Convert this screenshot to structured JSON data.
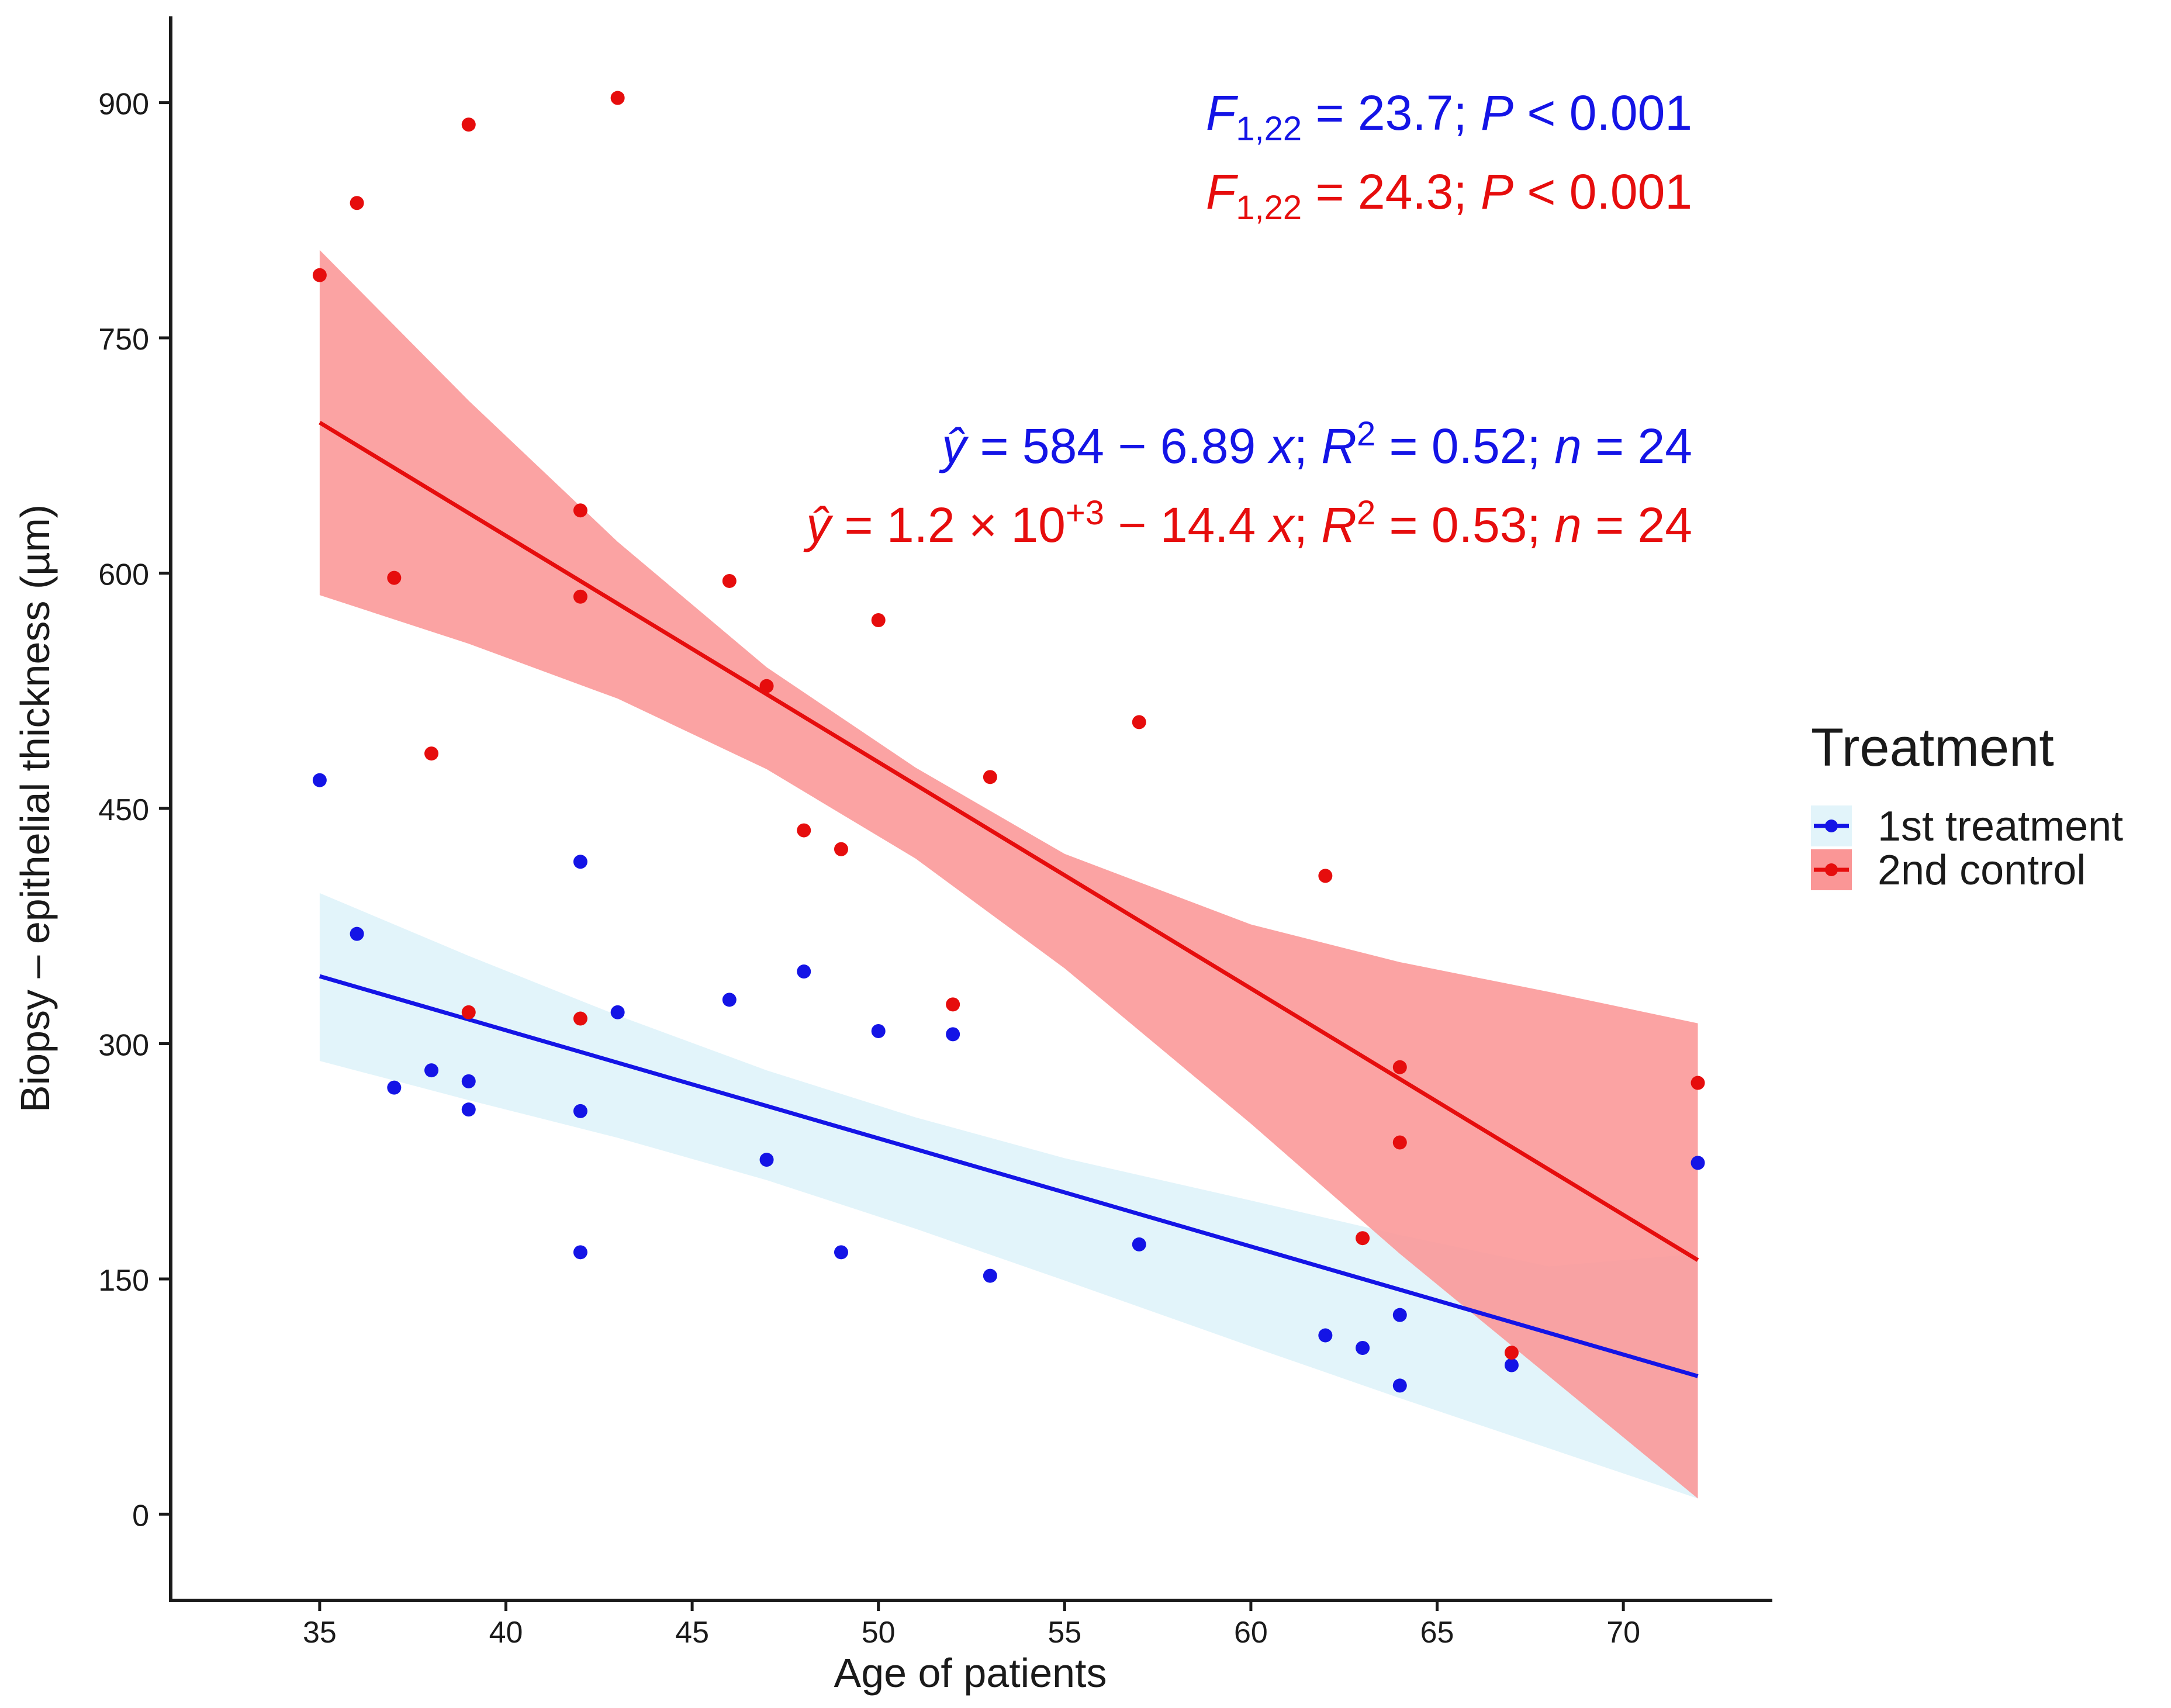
{
  "chart_data": {
    "type": "scatter",
    "xlabel": "Age of patients",
    "ylabel": "Biopsy – epithelial thickness (µm)",
    "xlim": [
      31,
      74
    ],
    "ylim": [
      -55,
      955
    ],
    "xticks": [
      "35",
      "40",
      "45",
      "50",
      "55",
      "60",
      "65",
      "70"
    ],
    "yticks": [
      "0",
      "150",
      "300",
      "450",
      "600",
      "750",
      "900"
    ],
    "grid": false,
    "legend": {
      "title": "Treatment",
      "placement": "right",
      "entries": [
        "1st treatment",
        "2nd control"
      ]
    },
    "series": [
      {
        "name": "1st treatment",
        "color": "#1414e6",
        "band_color": "#e2f4fa",
        "points": [
          {
            "x": 35,
            "y": 468
          },
          {
            "x": 36,
            "y": 370
          },
          {
            "x": 37,
            "y": 272
          },
          {
            "x": 38,
            "y": 283
          },
          {
            "x": 39,
            "y": 276
          },
          {
            "x": 39,
            "y": 258
          },
          {
            "x": 42,
            "y": 416
          },
          {
            "x": 42,
            "y": 257
          },
          {
            "x": 42,
            "y": 167
          },
          {
            "x": 43,
            "y": 320
          },
          {
            "x": 46,
            "y": 328
          },
          {
            "x": 47,
            "y": 226
          },
          {
            "x": 48,
            "y": 346
          },
          {
            "x": 49,
            "y": 167
          },
          {
            "x": 50,
            "y": 308
          },
          {
            "x": 52,
            "y": 306
          },
          {
            "x": 53,
            "y": 152
          },
          {
            "x": 57,
            "y": 172
          },
          {
            "x": 62,
            "y": 114
          },
          {
            "x": 63,
            "y": 106
          },
          {
            "x": 64,
            "y": 127
          },
          {
            "x": 64,
            "y": 82
          },
          {
            "x": 67,
            "y": 95
          },
          {
            "x": 72,
            "y": 224
          }
        ],
        "fit": {
          "x": [
            35,
            72
          ],
          "y": [
            343,
            88
          ]
        },
        "ci_band": {
          "x": [
            35,
            39,
            43,
            47,
            51,
            55,
            60,
            64,
            68,
            72
          ],
          "lower": [
            289,
            264,
            240,
            213,
            182,
            149,
            107,
            74,
            42,
            10
          ],
          "upper": [
            396,
            356,
            318,
            283,
            253,
            227,
            200,
            178,
            158,
            166
          ]
        },
        "equation": {
          "prefix": "= 584 − 6.89 ",
          "var": "x",
          "r2": "0.52",
          "n": "24"
        },
        "ftest": {
          "sub": "1,22",
          "text": " = 23.7; ",
          "p": "< 0.001"
        }
      },
      {
        "name": "2nd control",
        "color": "#e60d0d",
        "band_color": "#fa9696",
        "points": [
          {
            "x": 35,
            "y": 790
          },
          {
            "x": 36,
            "y": 836
          },
          {
            "x": 37,
            "y": 597
          },
          {
            "x": 38,
            "y": 485
          },
          {
            "x": 39,
            "y": 886
          },
          {
            "x": 39,
            "y": 320
          },
          {
            "x": 42,
            "y": 640
          },
          {
            "x": 42,
            "y": 585
          },
          {
            "x": 42,
            "y": 316
          },
          {
            "x": 43,
            "y": 903
          },
          {
            "x": 46,
            "y": 595
          },
          {
            "x": 47,
            "y": 528
          },
          {
            "x": 48,
            "y": 436
          },
          {
            "x": 49,
            "y": 424
          },
          {
            "x": 50,
            "y": 570
          },
          {
            "x": 52,
            "y": 325
          },
          {
            "x": 53,
            "y": 470
          },
          {
            "x": 57,
            "y": 505
          },
          {
            "x": 62,
            "y": 407
          },
          {
            "x": 63,
            "y": 176
          },
          {
            "x": 64,
            "y": 285
          },
          {
            "x": 64,
            "y": 237
          },
          {
            "x": 67,
            "y": 103
          },
          {
            "x": 72,
            "y": 275
          }
        ],
        "fit": {
          "x": [
            35,
            72
          ],
          "y": [
            696,
            162
          ]
        },
        "ci_band": {
          "x": [
            35,
            39,
            43,
            47,
            51,
            55,
            60,
            64,
            68,
            72
          ],
          "lower": [
            586,
            555,
            520,
            475,
            418,
            348,
            249,
            166,
            88,
            10
          ],
          "upper": [
            806,
            710,
            620,
            540,
            476,
            421,
            376,
            352,
            333,
            313
          ]
        },
        "equation": {
          "prefix": "= 1.2 × 10",
          "sup": "+3",
          "suffix": " − 14.4 ",
          "var": "x",
          "r2": "0.53",
          "n": "24"
        },
        "ftest": {
          "sub": "1,22",
          "text": " = 24.3; ",
          "p": "< 0.001"
        }
      }
    ],
    "annotation_text": {
      "f": "F",
      "p": "P",
      "yhat": "ŷ",
      "r": "R",
      "r_sup": "2",
      "n": "n",
      "sep": "; ",
      "eq_sign": " = "
    }
  }
}
